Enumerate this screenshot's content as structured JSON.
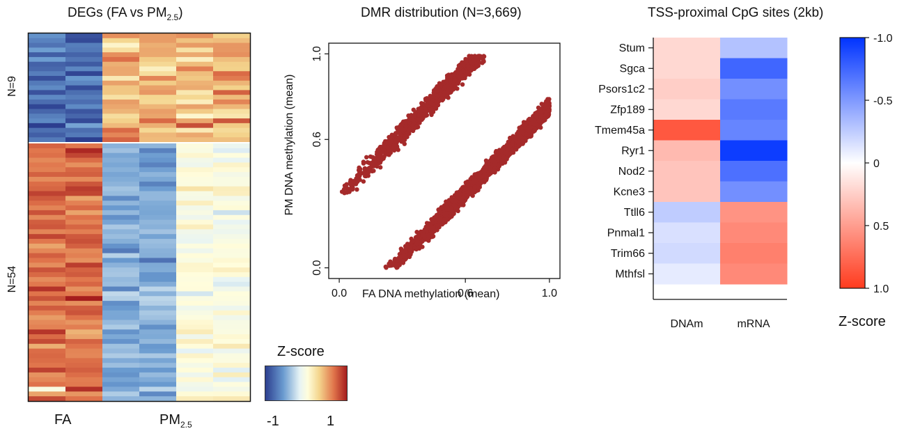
{
  "colors": {
    "heat_low": "#2c3e8f",
    "heat_mid": "#fffddc",
    "heat_high": "#a51d1d",
    "scatter_point": "#a52a2a",
    "tss_low": "#0033ff",
    "tss_mid": "#ffffff",
    "tss_high": "#ff3b1e"
  },
  "panel_a": {
    "title_main": "DEGs (FA vs PM",
    "title_sub": "2.5",
    "title_close": ")",
    "row_group_top": "N=9",
    "row_group_bottom": "N=54",
    "col_label_fa": "FA",
    "col_label_pm_main": "PM",
    "col_label_pm_sub": "2.5",
    "legend_title": "Z-score",
    "legend_min": "-1",
    "legend_max": "1"
  },
  "panel_b": {
    "title": "DMR distribution (N=3,669)",
    "xlabel": "FA DNA methylation (mean)",
    "ylabel": "PM DNA methylation (mean)"
  },
  "panel_c": {
    "title": "TSS-proximal CpG sites (2kb)",
    "legend_title": "Z-score"
  },
  "chart_data": [
    {
      "type": "heatmap",
      "title": "DEGs (FA vs PM2.5)",
      "columns": [
        "FA",
        "FA",
        "PM2.5",
        "PM2.5",
        "PM2.5",
        "PM2.5"
      ],
      "row_groups": [
        {
          "label": "N=9",
          "rows": 9
        },
        {
          "label": "N=54",
          "rows": 54
        }
      ],
      "scale": {
        "min": -1,
        "max": 1,
        "ticks": [
          "-1",
          "1"
        ],
        "title": "Z-score"
      },
      "group_pattern": {
        "N=9": {
          "FA": "low (approx -0.8)",
          "PM2.5": "high (approx 0.6)"
        },
        "N=54": {
          "FA": "high (approx 0.8)",
          "PM2.5": "low to neutral (approx -0.3)"
        }
      }
    },
    {
      "type": "scatter",
      "title": "DMR distribution (N=3,669)",
      "xlabel": "FA DNA methylation (mean)",
      "ylabel": "PM DNA methylation (mean)",
      "xlim": [
        -0.05,
        1.05
      ],
      "ylim": [
        -0.05,
        1.05
      ],
      "xticks": [
        "0.0",
        "0.6",
        "1.0"
      ],
      "yticks": [
        "0.0",
        "0.6",
        "1.0"
      ],
      "clusters": [
        {
          "description": "upper diagonal band (hypermethylated in PM)",
          "x_range": [
            0.0,
            0.75
          ],
          "y_approx": "y = x + 0.33",
          "n": 1400
        },
        {
          "description": "lower diagonal band (hypomethylated in PM)",
          "x_range": [
            0.2,
            1.0
          ],
          "y_approx": "y = x - 0.25",
          "n": 2269
        }
      ]
    },
    {
      "type": "heatmap",
      "title": "TSS-proximal CpG sites (2kb)",
      "rows": [
        "Stum",
        "Sgca",
        "Psors1c2",
        "Zfp189",
        "Tmem45a",
        "Ryr1",
        "Nod2",
        "Kcne3",
        "Ttll6",
        "Pnmal1",
        "Trim66",
        "Mthfsl"
      ],
      "columns": [
        "DNAm",
        "mRNA"
      ],
      "values": [
        [
          0.2,
          -0.3
        ],
        [
          0.2,
          -0.75
        ],
        [
          0.25,
          -0.55
        ],
        [
          0.2,
          -0.65
        ],
        [
          0.85,
          -0.6
        ],
        [
          0.35,
          -0.95
        ],
        [
          0.3,
          -0.7
        ],
        [
          0.3,
          -0.55
        ],
        [
          -0.25,
          0.55
        ],
        [
          -0.15,
          0.6
        ],
        [
          -0.18,
          0.65
        ],
        [
          -0.1,
          0.6
        ]
      ],
      "scale": {
        "min": -1.0,
        "max": 1.0,
        "ticks": [
          "-1.0",
          "-0.5",
          "0",
          "0.5",
          "1.0"
        ],
        "title": "Z-score",
        "reversed": true
      }
    }
  ]
}
